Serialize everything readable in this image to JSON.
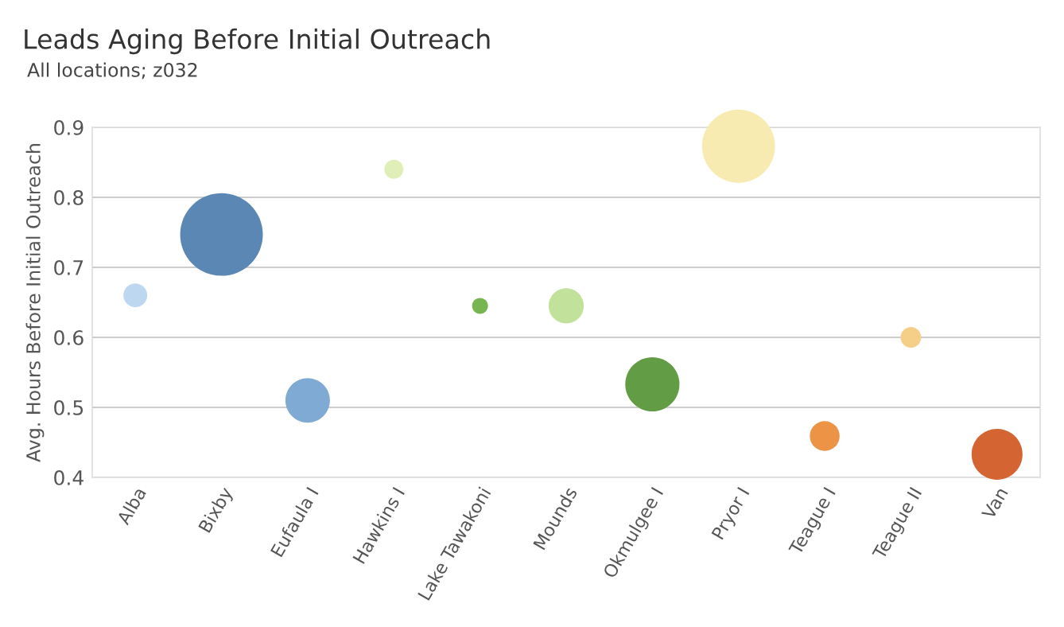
{
  "chart_data": {
    "type": "bubble",
    "title": "Leads Aging Before Initial Outreach",
    "subtitle": "All locations; z032",
    "ylabel": "Avg. Hours Before Initial Outreach",
    "categories": [
      "Alba",
      "Bixby",
      "Eufaula I",
      "Hawkins I",
      "Lake Tawakoni",
      "Mounds",
      "Okmulgee I",
      "Pryor I",
      "Teague I",
      "Teague II",
      "Van"
    ],
    "values": [
      0.66,
      0.747,
      0.51,
      0.84,
      0.645,
      0.645,
      0.533,
      0.873,
      0.459,
      0.6,
      0.433
    ],
    "sizes": [
      0.083,
      1,
      0.29,
      0.053,
      0.037,
      0.18,
      0.43,
      0.78,
      0.13,
      0.062,
      0.38
    ],
    "colors": [
      "#bdd7f0",
      "#5b87b5",
      "#7eaad4",
      "#e0efb8",
      "#76b550",
      "#c2e29c",
      "#629c45",
      "#f8ebb2",
      "#ec9346",
      "#f5cf88",
      "#d46432"
    ],
    "ylim": [
      0.4,
      0.9
    ],
    "yticks": [
      0.4,
      0.5,
      0.6,
      0.7,
      0.8,
      0.9
    ],
    "grid": "y",
    "legend": false
  }
}
